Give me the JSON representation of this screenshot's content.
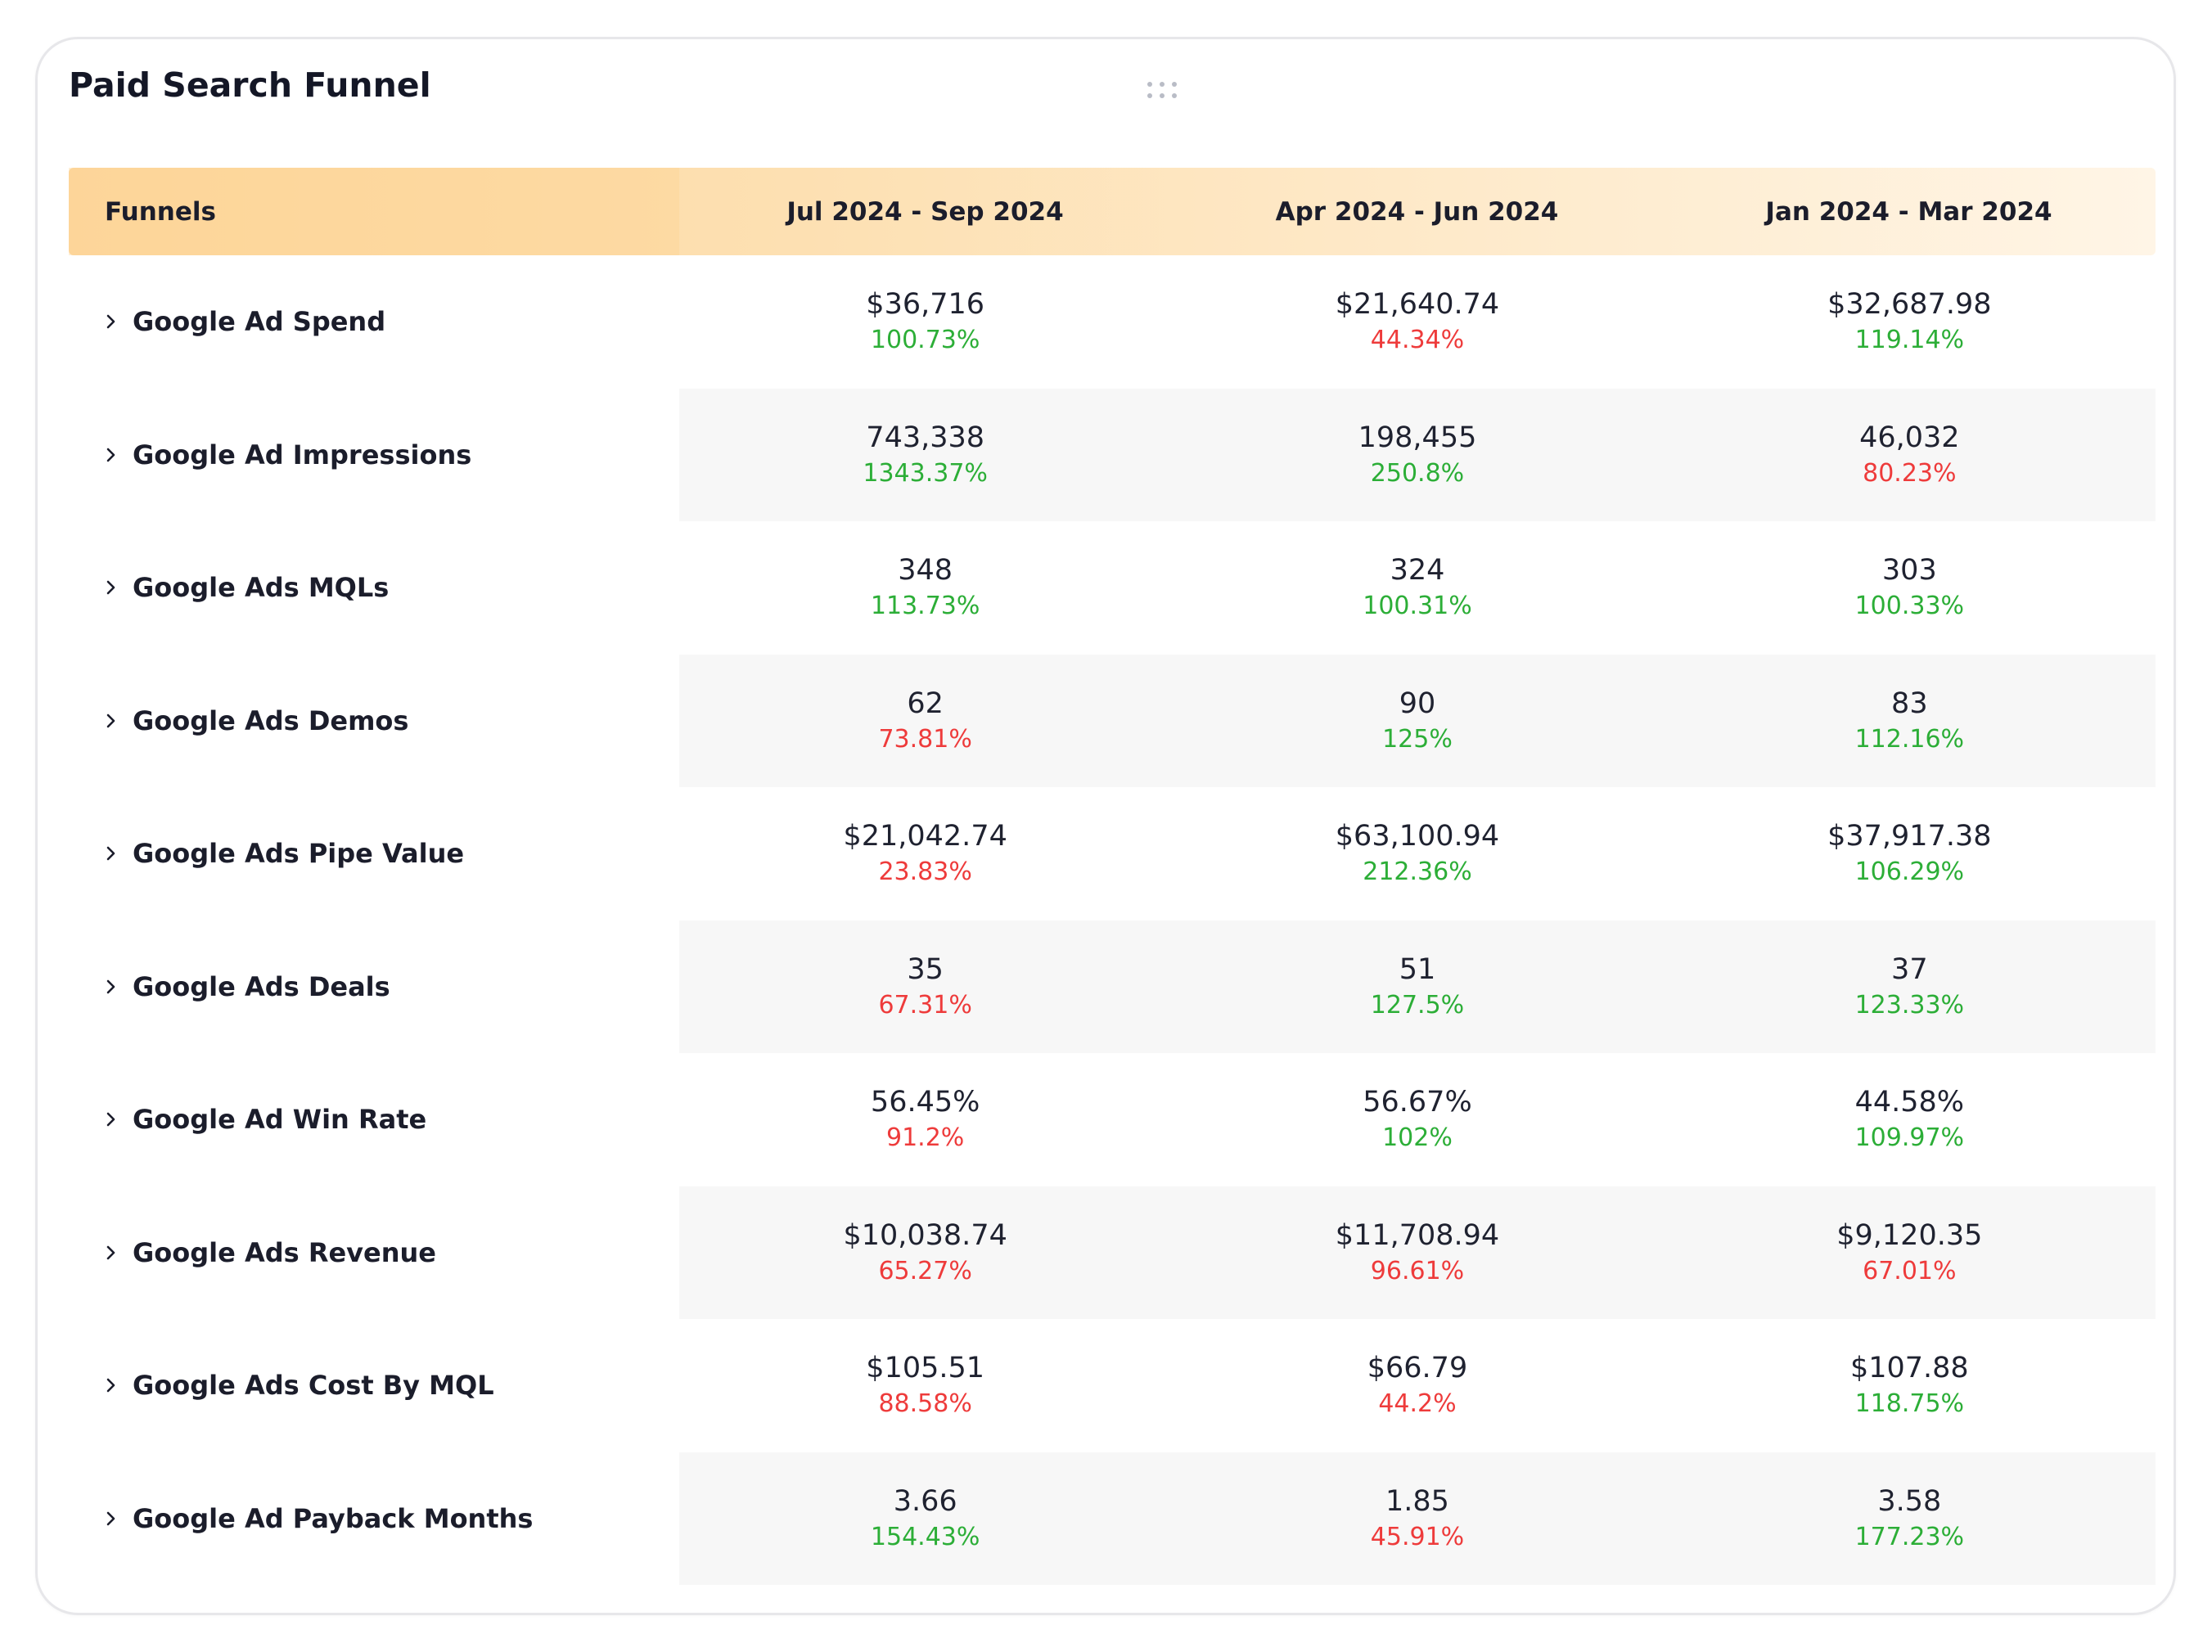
{
  "widget": {
    "title": "Paid Search Funnel"
  },
  "colors": {
    "positive": "#2cae37",
    "negative": "#ee3b3b",
    "header_gradient_start": "#fdd8a0",
    "header_gradient_end": "#fff5e6"
  },
  "table": {
    "headers": [
      "Funnels",
      "Jul 2024 - Sep 2024",
      "Apr 2024 - Jun 2024",
      "Jan 2024 - Mar 2024"
    ],
    "rows": [
      {
        "label": "Google Ad Spend",
        "cells": [
          {
            "value": "$36,716",
            "pct": "100.73%",
            "trend": "up"
          },
          {
            "value": "$21,640.74",
            "pct": "44.34%",
            "trend": "down"
          },
          {
            "value": "$32,687.98",
            "pct": "119.14%",
            "trend": "up"
          }
        ]
      },
      {
        "label": "Google Ad Impressions",
        "cells": [
          {
            "value": "743,338",
            "pct": "1343.37%",
            "trend": "up"
          },
          {
            "value": "198,455",
            "pct": "250.8%",
            "trend": "up"
          },
          {
            "value": "46,032",
            "pct": "80.23%",
            "trend": "down"
          }
        ]
      },
      {
        "label": "Google Ads MQLs",
        "cells": [
          {
            "value": "348",
            "pct": "113.73%",
            "trend": "up"
          },
          {
            "value": "324",
            "pct": "100.31%",
            "trend": "up"
          },
          {
            "value": "303",
            "pct": "100.33%",
            "trend": "up"
          }
        ]
      },
      {
        "label": "Google Ads Demos",
        "cells": [
          {
            "value": "62",
            "pct": "73.81%",
            "trend": "down"
          },
          {
            "value": "90",
            "pct": "125%",
            "trend": "up"
          },
          {
            "value": "83",
            "pct": "112.16%",
            "trend": "up"
          }
        ]
      },
      {
        "label": "Google Ads Pipe Value",
        "cells": [
          {
            "value": "$21,042.74",
            "pct": "23.83%",
            "trend": "down"
          },
          {
            "value": "$63,100.94",
            "pct": "212.36%",
            "trend": "up"
          },
          {
            "value": "$37,917.38",
            "pct": "106.29%",
            "trend": "up"
          }
        ]
      },
      {
        "label": "Google Ads Deals",
        "cells": [
          {
            "value": "35",
            "pct": "67.31%",
            "trend": "down"
          },
          {
            "value": "51",
            "pct": "127.5%",
            "trend": "up"
          },
          {
            "value": "37",
            "pct": "123.33%",
            "trend": "up"
          }
        ]
      },
      {
        "label": "Google Ad Win Rate",
        "cells": [
          {
            "value": "56.45%",
            "pct": "91.2%",
            "trend": "down"
          },
          {
            "value": "56.67%",
            "pct": "102%",
            "trend": "up"
          },
          {
            "value": "44.58%",
            "pct": "109.97%",
            "trend": "up"
          }
        ]
      },
      {
        "label": "Google Ads Revenue",
        "cells": [
          {
            "value": "$10,038.74",
            "pct": "65.27%",
            "trend": "down"
          },
          {
            "value": "$11,708.94",
            "pct": "96.61%",
            "trend": "down"
          },
          {
            "value": "$9,120.35",
            "pct": "67.01%",
            "trend": "down"
          }
        ]
      },
      {
        "label": "Google Ads Cost By MQL",
        "cells": [
          {
            "value": "$105.51",
            "pct": "88.58%",
            "trend": "down"
          },
          {
            "value": "$66.79",
            "pct": "44.2%",
            "trend": "down"
          },
          {
            "value": "$107.88",
            "pct": "118.75%",
            "trend": "up"
          }
        ]
      },
      {
        "label": "Google Ad Payback Months",
        "cells": [
          {
            "value": "3.66",
            "pct": "154.43%",
            "trend": "up"
          },
          {
            "value": "1.85",
            "pct": "45.91%",
            "trend": "down"
          },
          {
            "value": "3.58",
            "pct": "177.23%",
            "trend": "up"
          }
        ]
      }
    ]
  }
}
